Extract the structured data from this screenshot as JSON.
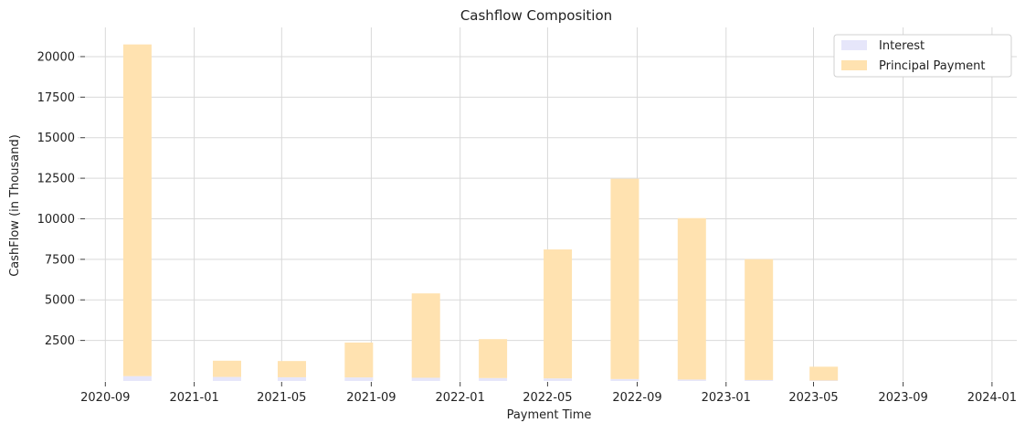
{
  "chart_data": {
    "type": "bar",
    "title": "Cashflow Composition",
    "xlabel": "Payment Time",
    "ylabel": "CashFlow (in Thousand)",
    "x_is_date": true,
    "xlim": [
      "2020-07-25",
      "2024-02-04"
    ],
    "ylim": [
      0,
      21800
    ],
    "yticks": [
      2500,
      5000,
      7500,
      10000,
      12500,
      15000,
      17500,
      20000
    ],
    "xticks": [
      "2020-09-01",
      "2021-01-01",
      "2021-05-01",
      "2021-09-01",
      "2022-01-01",
      "2022-05-01",
      "2022-09-01",
      "2023-01-01",
      "2023-05-01",
      "2023-09-01",
      "2024-01-01"
    ],
    "xtick_labels": [
      "2020-09",
      "2021-01",
      "2021-05",
      "2021-09",
      "2022-01",
      "2022-05",
      "2022-09",
      "2023-01",
      "2023-05",
      "2023-09",
      "2024-01"
    ],
    "grid": true,
    "stacked": true,
    "legend_position": "top-right",
    "dates": [
      "2020-10-15",
      "2021-02-15",
      "2021-05-15",
      "2021-08-15",
      "2021-11-15",
      "2022-02-15",
      "2022-05-15",
      "2022-08-15",
      "2022-11-15",
      "2023-02-15",
      "2023-05-15"
    ],
    "series": [
      {
        "name": "Interest",
        "color": "#e6e6fa",
        "values": [
          300,
          250,
          230,
          220,
          200,
          180,
          160,
          120,
          90,
          60,
          30
        ]
      },
      {
        "name": "Principal Payment",
        "color": "#ffe2b0",
        "values": [
          20450,
          1000,
          1000,
          2150,
          5200,
          2400,
          7950,
          12350,
          9950,
          7450,
          850
        ]
      }
    ]
  }
}
